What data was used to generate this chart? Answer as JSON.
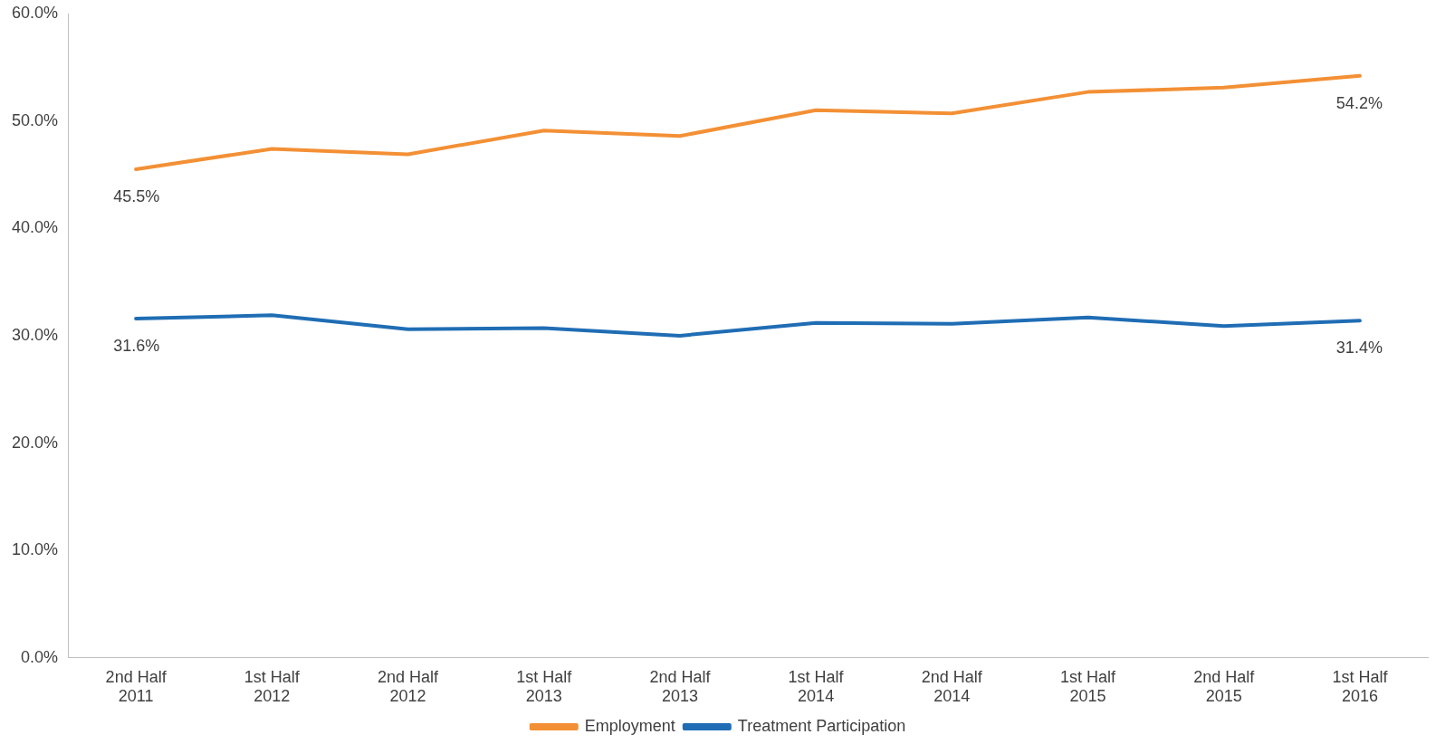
{
  "chart_data": {
    "type": "line",
    "categories": [
      "2nd Half\n2011",
      "1st Half\n2012",
      "2nd Half\n2012",
      "1st Half\n2013",
      "2nd Half\n2013",
      "1st Half\n2014",
      "2nd Half\n2014",
      "1st Half\n2015",
      "2nd Half\n2015",
      "1st Half\n2016"
    ],
    "series": [
      {
        "name": "Employment",
        "color": "#f39035",
        "values": [
          45.5,
          47.4,
          46.9,
          49.1,
          48.6,
          51.0,
          50.7,
          52.7,
          53.1,
          54.2
        ],
        "value_labels": [
          "45.5%",
          null,
          null,
          null,
          null,
          null,
          null,
          null,
          null,
          "54.2%"
        ]
      },
      {
        "name": "Treatment Participation",
        "color": "#1f6db4",
        "values": [
          31.6,
          31.9,
          30.6,
          30.7,
          30.0,
          31.2,
          31.1,
          31.7,
          30.9,
          31.4
        ],
        "value_labels": [
          "31.6%",
          null,
          null,
          null,
          null,
          null,
          null,
          null,
          null,
          "31.4%"
        ]
      }
    ],
    "ylim": [
      0,
      60
    ],
    "yticks": [
      {
        "value": 0,
        "label": "0.0%"
      },
      {
        "value": 10,
        "label": "10.0%"
      },
      {
        "value": 20,
        "label": "20.0%"
      },
      {
        "value": 30,
        "label": "30.0%"
      },
      {
        "value": 40,
        "label": "40.0%"
      },
      {
        "value": 50,
        "label": "50.0%"
      },
      {
        "value": 60,
        "label": "60.0%"
      }
    ],
    "grid": false,
    "legend": "bottom",
    "marker": "none",
    "line_style": "solid"
  }
}
